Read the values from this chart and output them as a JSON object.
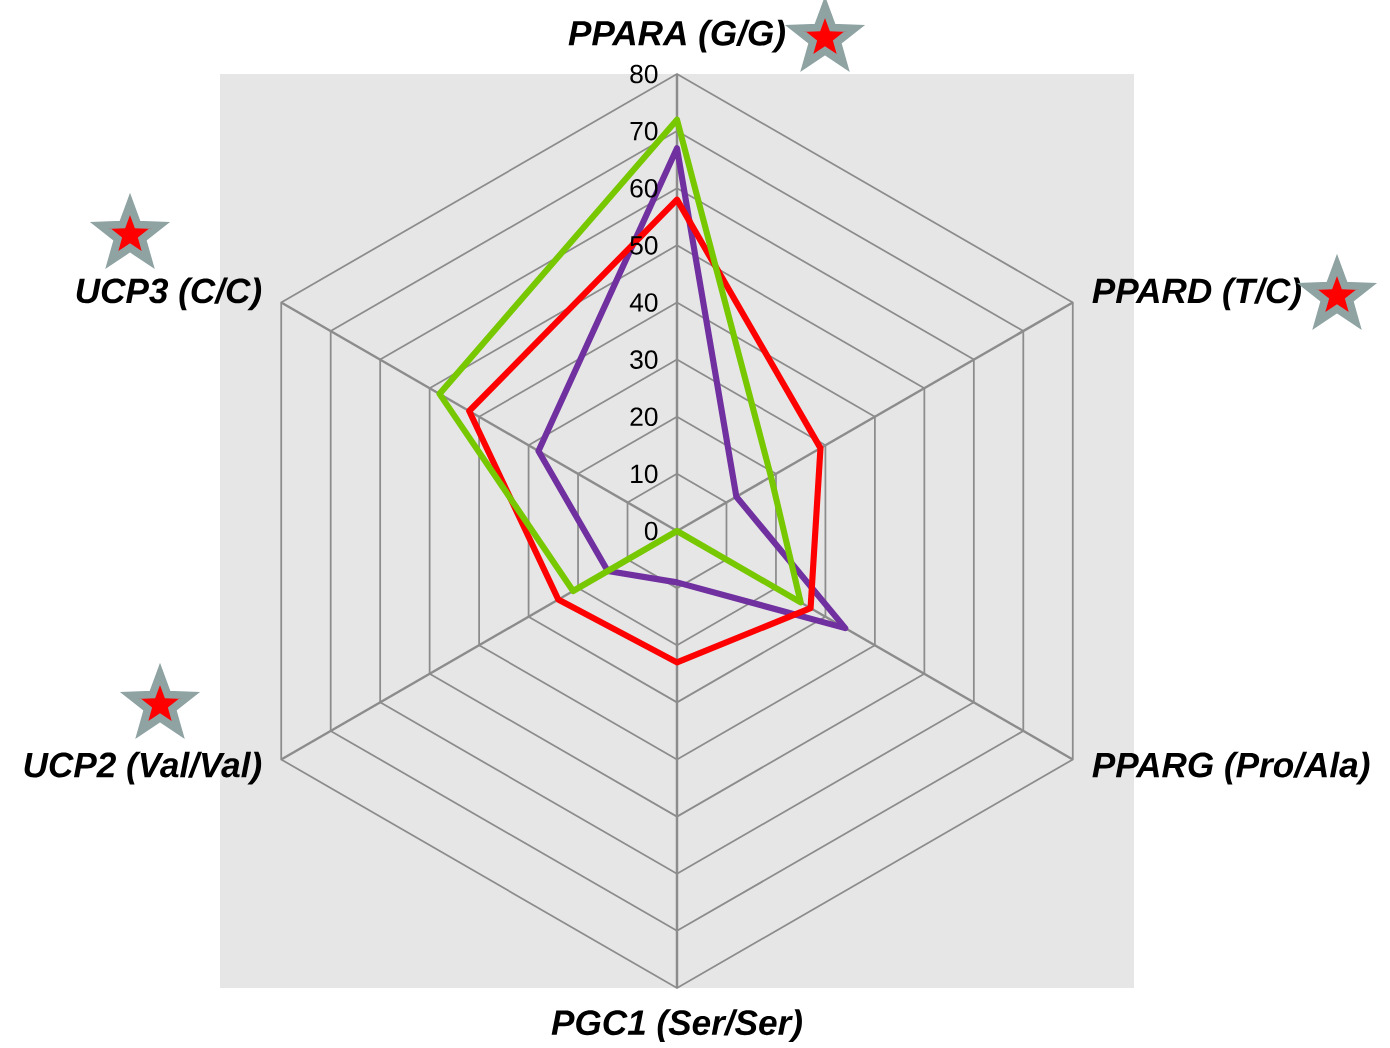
{
  "chart_data": {
    "type": "radar",
    "categories": [
      "PPARA (G/G)",
      "PPARD (T/C)",
      "PPARG (Pro/Ala)",
      "PGC1 (Ser/Ser)",
      "UCP2 (Val/Val)",
      "UCP3 (C/C)"
    ],
    "ylim": [
      0,
      80
    ],
    "yticks": [
      0,
      10,
      20,
      30,
      40,
      50,
      60,
      70,
      80
    ],
    "grid": true,
    "series": [
      {
        "color": "#7030a0",
        "values": [
          67,
          12,
          34,
          9,
          14,
          28
        ]
      },
      {
        "color": "#ff0000",
        "values": [
          58,
          29,
          27,
          23,
          24,
          42
        ]
      },
      {
        "color": "#77c800",
        "values": [
          72,
          19,
          25,
          0,
          21,
          48
        ]
      }
    ]
  }
}
